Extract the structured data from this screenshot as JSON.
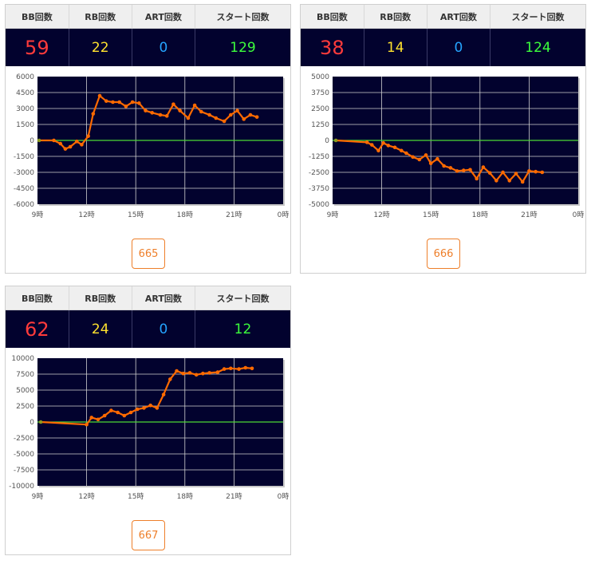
{
  "headers": {
    "bb": "BB回数",
    "rb": "RB回数",
    "art": "ART回数",
    "start": "スタート回数"
  },
  "colors": {
    "bb": "#ff3b3b",
    "rb": "#ffe22e",
    "art": "#25a4ff",
    "start": "#3cff3c",
    "plot_bg": "#02022e",
    "line": "#ff6a00",
    "zero_line": "#4cd936",
    "button": "#ee7f2a"
  },
  "machines": [
    {
      "id": "665",
      "bb": "59",
      "rb": "22",
      "art": "0",
      "start": "129"
    },
    {
      "id": "666",
      "bb": "38",
      "rb": "14",
      "art": "0",
      "start": "124"
    },
    {
      "id": "667",
      "bb": "62",
      "rb": "24",
      "art": "0",
      "start": "12"
    }
  ],
  "chart_data": [
    {
      "type": "line",
      "title": "",
      "xlabel": "",
      "ylabel": "",
      "xlim": [
        9,
        24
      ],
      "ylim": [
        -6000,
        6000
      ],
      "x_ticks": [
        "9時",
        "12時",
        "15時",
        "18時",
        "21時",
        "0時"
      ],
      "y_ticks": [
        "6000",
        "4500",
        "3000",
        "1500",
        "0",
        "-1500",
        "-3000",
        "-4500",
        "-6000"
      ],
      "grid": true,
      "series": [
        {
          "x": [
            9.1,
            10.0,
            10.4,
            10.7,
            11.0,
            11.4,
            11.7,
            12.1,
            12.4,
            12.8,
            13.2,
            13.6,
            14.0,
            14.4,
            14.8,
            15.2,
            15.6,
            16.0,
            16.5,
            16.9,
            17.3,
            17.7,
            18.2,
            18.6,
            19.0,
            19.5,
            19.9,
            20.4,
            20.8,
            21.2,
            21.6,
            22.0,
            22.4
          ],
          "y": [
            0,
            0,
            -300,
            -800,
            -600,
            -100,
            -400,
            400,
            2500,
            4200,
            3700,
            3600,
            3600,
            3200,
            3600,
            3500,
            2800,
            2600,
            2400,
            2300,
            3400,
            2800,
            2100,
            3300,
            2700,
            2400,
            2100,
            1800,
            2400,
            2800,
            2000,
            2400,
            2200
          ]
        }
      ]
    },
    {
      "type": "line",
      "title": "",
      "xlabel": "",
      "ylabel": "",
      "xlim": [
        9,
        24
      ],
      "ylim": [
        -5000,
        5000
      ],
      "x_ticks": [
        "9時",
        "12時",
        "15時",
        "18時",
        "21時",
        "0時"
      ],
      "y_ticks": [
        "5000",
        "3750",
        "2500",
        "1250",
        "0",
        "-1250",
        "-2500",
        "-3750",
        "-5000"
      ],
      "grid": true,
      "series": [
        {
          "x": [
            9.2,
            11.1,
            11.4,
            11.8,
            12.1,
            12.4,
            12.8,
            13.2,
            13.5,
            13.9,
            14.3,
            14.7,
            15.0,
            15.4,
            15.8,
            16.2,
            16.6,
            17.0,
            17.4,
            17.8,
            18.2,
            18.6,
            19.0,
            19.4,
            19.8,
            20.2,
            20.6,
            21.0,
            21.4,
            21.8
          ],
          "y": [
            0,
            -150,
            -350,
            -800,
            -200,
            -400,
            -550,
            -800,
            -1000,
            -1300,
            -1500,
            -1150,
            -1800,
            -1450,
            -2000,
            -2150,
            -2400,
            -2350,
            -2300,
            -3000,
            -2100,
            -2550,
            -3150,
            -2500,
            -3150,
            -2600,
            -3250,
            -2400,
            -2450,
            -2500
          ]
        }
      ]
    },
    {
      "type": "line",
      "title": "",
      "xlabel": "",
      "ylabel": "",
      "xlim": [
        9,
        24
      ],
      "ylim": [
        -10000,
        10000
      ],
      "x_ticks": [
        "9時",
        "12時",
        "15時",
        "18時",
        "21時",
        "0時"
      ],
      "y_ticks": [
        "10000",
        "7500",
        "5000",
        "2500",
        "0",
        "-2500",
        "-5000",
        "-7500",
        "-10000"
      ],
      "grid": true,
      "series": [
        {
          "x": [
            9.2,
            12.0,
            12.3,
            12.7,
            13.1,
            13.5,
            13.9,
            14.3,
            14.7,
            15.1,
            15.5,
            15.9,
            16.3,
            16.7,
            17.1,
            17.5,
            17.9,
            18.3,
            18.7,
            19.1,
            19.5,
            20.0,
            20.4,
            20.8,
            21.3,
            21.7,
            22.1
          ],
          "y": [
            0,
            -400,
            700,
            400,
            1000,
            1800,
            1500,
            1000,
            1500,
            2000,
            2200,
            2600,
            2200,
            4300,
            6700,
            8000,
            7600,
            7700,
            7400,
            7600,
            7700,
            7800,
            8300,
            8400,
            8300,
            8500,
            8400
          ]
        }
      ]
    }
  ]
}
